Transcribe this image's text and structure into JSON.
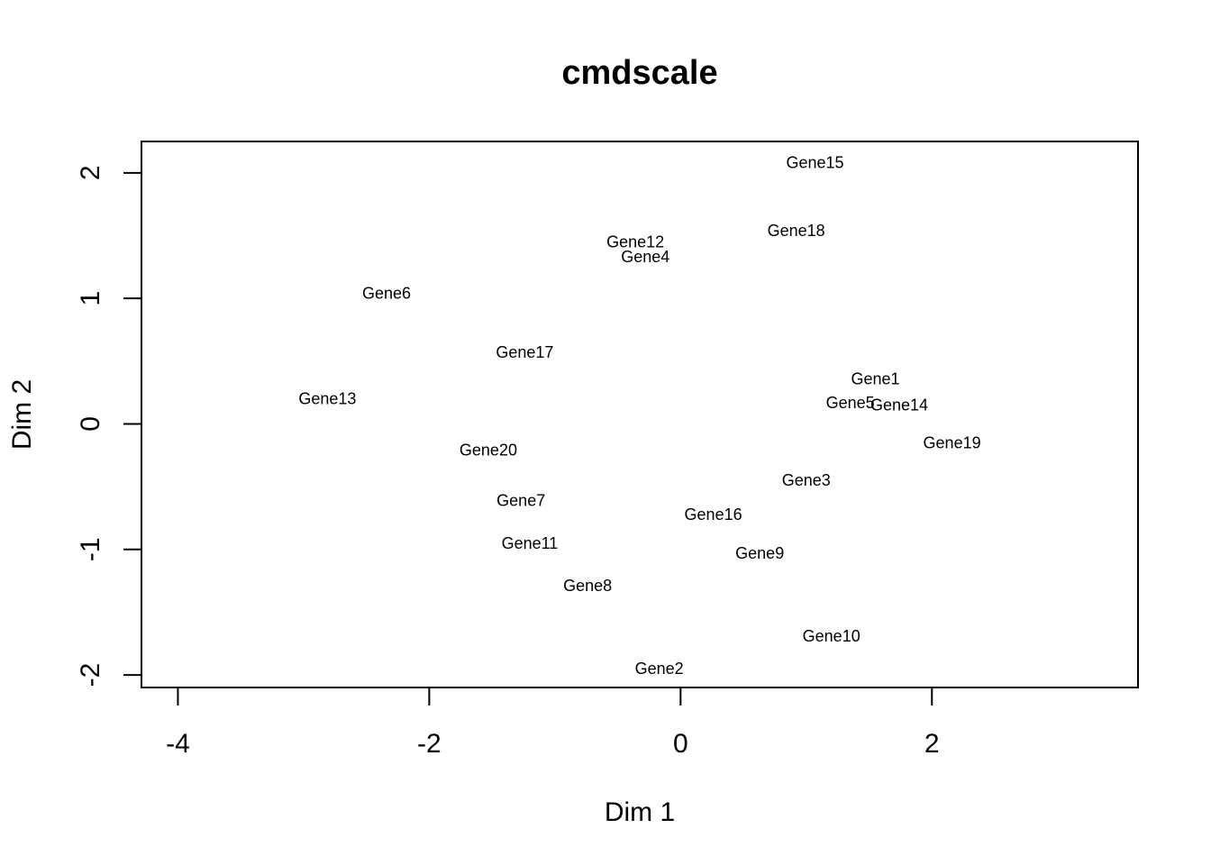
{
  "chart_data": {
    "type": "scatter",
    "title": "cmdscale",
    "xlabel": "Dim 1",
    "ylabel": "Dim 2",
    "xlim": [
      -4.29,
      3.64
    ],
    "ylim": [
      -2.1,
      2.25
    ],
    "xticks": [
      -4,
      -2,
      0,
      2
    ],
    "yticks": [
      -2,
      -1,
      0,
      1,
      2
    ],
    "xtick_labels": [
      "-4",
      "-2",
      "0",
      "2"
    ],
    "ytick_labels": [
      "-2",
      "-1",
      "0",
      "1",
      "2"
    ],
    "grid": false,
    "marker": "text-label",
    "points": [
      {
        "label": "Gene1",
        "x": 1.55,
        "y": 0.36
      },
      {
        "label": "Gene2",
        "x": -0.17,
        "y": -1.95
      },
      {
        "label": "Gene3",
        "x": 1.0,
        "y": -0.45
      },
      {
        "label": "Gene4",
        "x": -0.28,
        "y": 1.33
      },
      {
        "label": "Gene5",
        "x": 1.35,
        "y": 0.17
      },
      {
        "label": "Gene6",
        "x": -2.34,
        "y": 1.04
      },
      {
        "label": "Gene7",
        "x": -1.27,
        "y": -0.61
      },
      {
        "label": "Gene8",
        "x": -0.74,
        "y": -1.29
      },
      {
        "label": "Gene9",
        "x": 0.63,
        "y": -1.03
      },
      {
        "label": "Gene10",
        "x": 1.2,
        "y": -1.69
      },
      {
        "label": "Gene11",
        "x": -1.2,
        "y": -0.95
      },
      {
        "label": "Gene12",
        "x": -0.36,
        "y": 1.45
      },
      {
        "label": "Gene13",
        "x": -2.81,
        "y": 0.2
      },
      {
        "label": "Gene14",
        "x": 1.74,
        "y": 0.15
      },
      {
        "label": "Gene15",
        "x": 1.07,
        "y": 2.08
      },
      {
        "label": "Gene16",
        "x": 0.26,
        "y": -0.72
      },
      {
        "label": "Gene17",
        "x": -1.24,
        "y": 0.57
      },
      {
        "label": "Gene18",
        "x": 0.92,
        "y": 1.54
      },
      {
        "label": "Gene19",
        "x": 2.16,
        "y": -0.15
      },
      {
        "label": "Gene20",
        "x": -1.53,
        "y": -0.21
      }
    ]
  }
}
